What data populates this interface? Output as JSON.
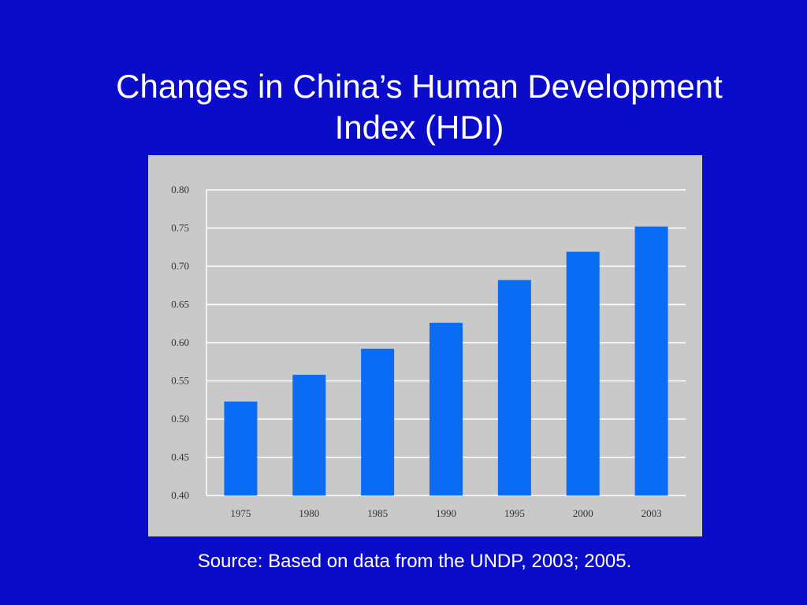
{
  "slide": {
    "title_line1": "Changes in China’s Human Development",
    "title_line2": "Index (HDI)",
    "source": "Source: Based on data from the UNDP, 2003; 2005."
  },
  "colors": {
    "background": "#0b0cc9",
    "bar": "#0a6cf5",
    "plot_background": "#c9c9c9",
    "gridline": "#ffffff",
    "text": "#ffffff"
  },
  "chart_data": {
    "type": "bar",
    "categories": [
      "1975",
      "1980",
      "1985",
      "1990",
      "1995",
      "2000",
      "2003"
    ],
    "values": [
      0.523,
      0.558,
      0.592,
      0.626,
      0.682,
      0.719,
      0.752
    ],
    "title": "",
    "xlabel": "",
    "ylabel": "",
    "ylim": [
      0.4,
      0.8
    ],
    "yticks": [
      "0.40",
      "0.45",
      "0.50",
      "0.55",
      "0.60",
      "0.65",
      "0.70",
      "0.75",
      "0.80"
    ],
    "grid": true,
    "legend": "none"
  }
}
